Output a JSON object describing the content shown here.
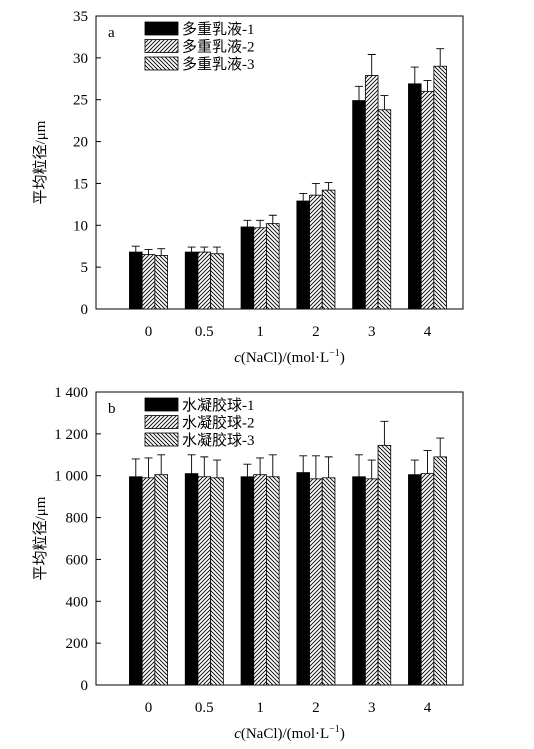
{
  "chart_data": [
    {
      "type": "bar",
      "panel_label": "a",
      "categories": [
        "0",
        "0.5",
        "1",
        "2",
        "3",
        "4"
      ],
      "xlabel_prefix": "c",
      "xlabel_rest": "(NaCl)/(mol·L",
      "xlabel_sup": "−1",
      "xlabel_close": ")",
      "ylabel": "平均粒径/μm",
      "ylim": [
        0,
        35
      ],
      "yticks": [
        0,
        5,
        10,
        15,
        20,
        25,
        30,
        35
      ],
      "ytick_labels": [
        "0",
        "5",
        "10",
        "15",
        "20",
        "25",
        "30",
        "35"
      ],
      "legend_position": "top-left",
      "series": [
        {
          "name": "多重乳液-1",
          "pattern": "solid",
          "values": [
            6.8,
            6.8,
            9.8,
            12.9,
            24.9,
            26.9
          ],
          "errors": [
            0.7,
            0.6,
            0.8,
            0.9,
            1.7,
            2.0
          ]
        },
        {
          "name": "多重乳液-2",
          "pattern": "diag-right",
          "values": [
            6.5,
            6.8,
            9.7,
            13.6,
            27.9,
            26.0
          ],
          "errors": [
            0.6,
            0.6,
            0.9,
            1.4,
            2.5,
            1.3
          ]
        },
        {
          "name": "多重乳液-3",
          "pattern": "diag-left",
          "values": [
            6.4,
            6.6,
            10.2,
            14.2,
            23.8,
            29.0
          ],
          "errors": [
            0.8,
            0.8,
            1.0,
            0.9,
            1.7,
            2.1
          ]
        }
      ]
    },
    {
      "type": "bar",
      "panel_label": "b",
      "categories": [
        "0",
        "0.5",
        "1",
        "2",
        "3",
        "4"
      ],
      "xlabel_prefix": "c",
      "xlabel_rest": "(NaCl)/(mol·L",
      "xlabel_sup": "−1",
      "xlabel_close": ")",
      "ylabel": "平均粒径/μm",
      "ylim": [
        0,
        1400
      ],
      "yticks": [
        0,
        200,
        400,
        600,
        800,
        1000,
        1200,
        1400
      ],
      "ytick_labels": [
        "0",
        "200",
        "400",
        "600",
        "800",
        "1 000",
        "1 200",
        "1 400"
      ],
      "legend_position": "top-left",
      "series": [
        {
          "name": "水凝胶球-1",
          "pattern": "solid",
          "values": [
            995,
            1010,
            995,
            1015,
            995,
            1005
          ],
          "errors": [
            85,
            90,
            60,
            80,
            105,
            70
          ]
        },
        {
          "name": "水凝胶球-2",
          "pattern": "diag-right",
          "values": [
            990,
            995,
            1005,
            985,
            985,
            1010
          ],
          "errors": [
            95,
            95,
            80,
            110,
            90,
            110
          ]
        },
        {
          "name": "水凝胶球-3",
          "pattern": "diag-left",
          "values": [
            1005,
            990,
            995,
            990,
            1145,
            1090
          ],
          "errors": [
            95,
            85,
            105,
            100,
            115,
            90
          ]
        }
      ]
    }
  ]
}
